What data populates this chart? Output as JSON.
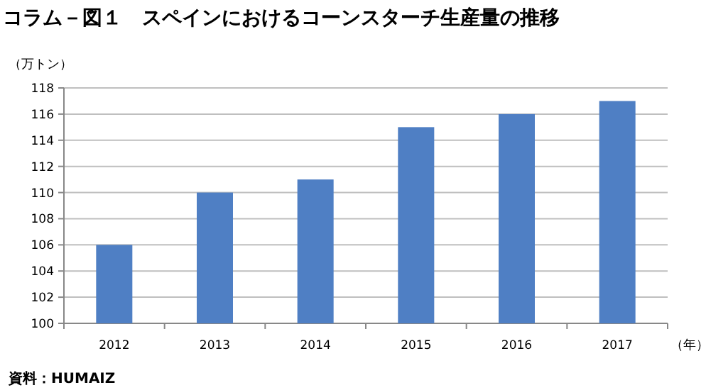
{
  "chart_data": {
    "type": "bar",
    "title": "コラム－図１　スペインにおけるコーンスターチ生産量の推移",
    "ylabel": "（万トン）",
    "xlabel": "（年）",
    "categories": [
      "2012",
      "2013",
      "2014",
      "2015",
      "2016",
      "2017"
    ],
    "values": [
      106,
      110,
      111,
      115,
      116,
      117
    ],
    "color": "#4f7fc4",
    "ylim": [
      100,
      118
    ],
    "yticks": [
      100,
      102,
      104,
      106,
      108,
      110,
      112,
      114,
      116,
      118
    ],
    "grid": "y",
    "annotations": [
      "資料：HUMAIZ"
    ]
  }
}
